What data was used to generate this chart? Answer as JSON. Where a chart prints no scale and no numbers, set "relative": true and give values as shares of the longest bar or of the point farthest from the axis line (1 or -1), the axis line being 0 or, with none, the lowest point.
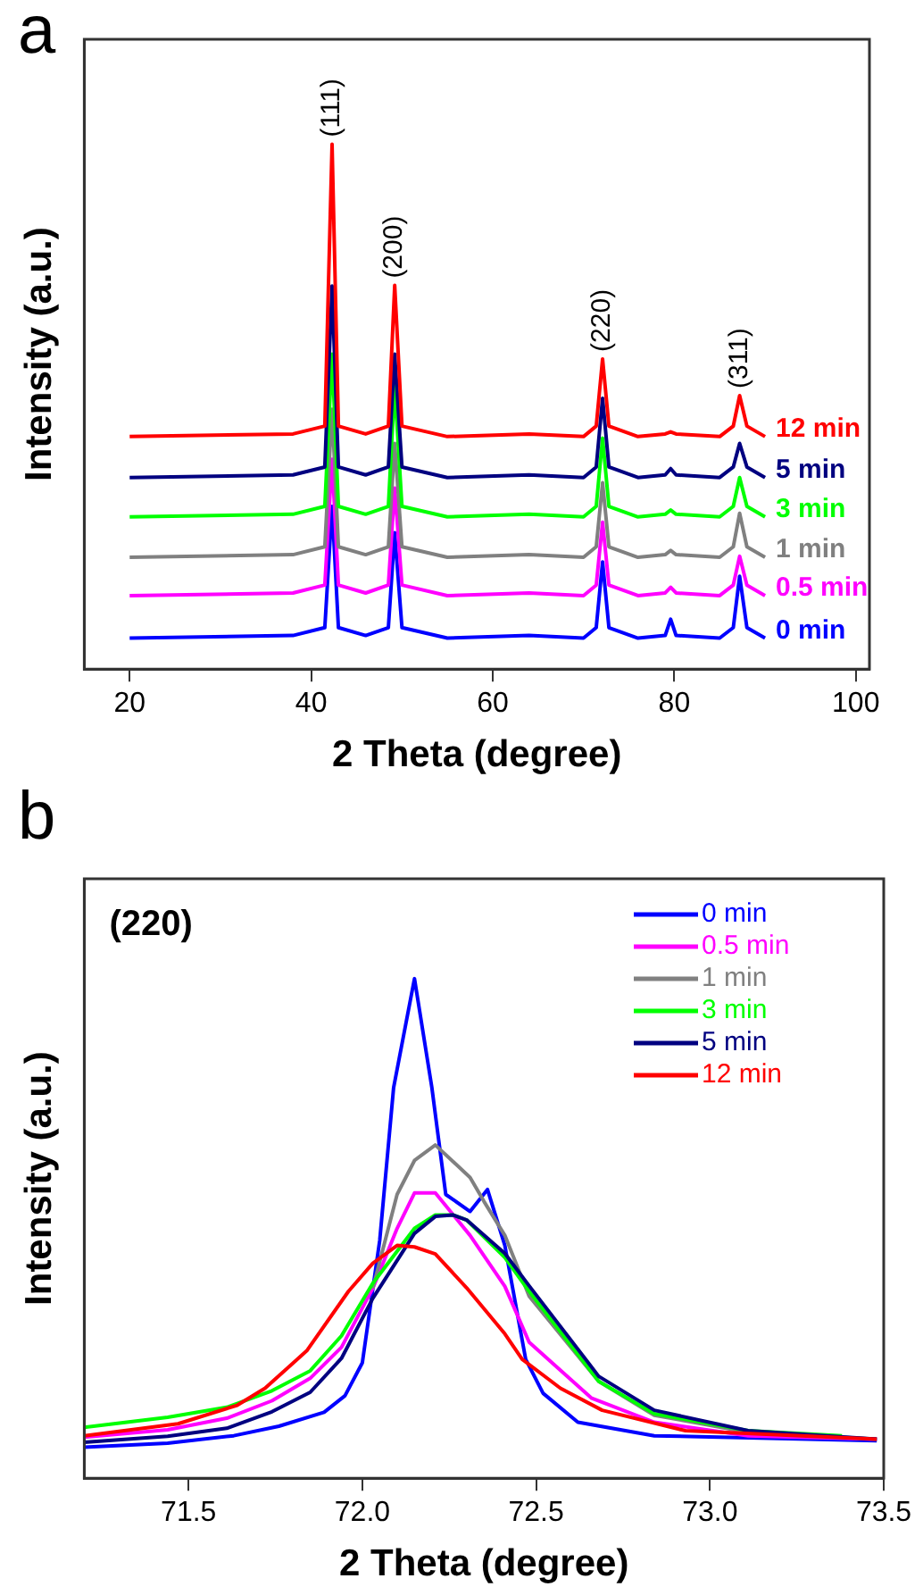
{
  "chart_data": [
    {
      "type": "line",
      "title": "a",
      "xlabel": "2 Theta (degree)",
      "ylabel": "Intensity (a.u.)",
      "relative": true,
      "legend": false,
      "marker": "none",
      "line_style": "solid",
      "grid": false,
      "xlim": [
        15,
        101.5
      ],
      "xticks": [
        20,
        40,
        60,
        80,
        100
      ],
      "annotations": [
        {
          "text": "(111)",
          "x": 42.3,
          "y": 1
        },
        {
          "text": "(200)",
          "x": 49.2,
          "y": 0.731
        },
        {
          "text": "(220)",
          "x": 72.1,
          "y": 0.591
        },
        {
          "text": "(311)",
          "x": 87.2,
          "y": 0.521
        }
      ],
      "x": [
        20,
        38,
        41.5,
        42.3,
        43,
        46,
        48.5,
        49.2,
        50,
        55,
        64,
        70,
        71.4,
        72.1,
        72.8,
        76,
        79,
        79.6,
        80.2,
        85,
        86.5,
        87.2,
        88,
        90
      ],
      "series": [
        {
          "name": "0 min",
          "color": "#0000ff",
          "values": [
            0.059,
            0.064,
            0.079,
            0.31,
            0.079,
            0.064,
            0.079,
            0.26,
            0.079,
            0.059,
            0.064,
            0.059,
            0.079,
            0.204,
            0.079,
            0.059,
            0.064,
            0.095,
            0.064,
            0.059,
            0.079,
            0.177,
            0.079,
            0.059
          ]
        },
        {
          "name": "0.5 min",
          "color": "#ff00ff",
          "values": [
            0.14,
            0.145,
            0.16,
            0.4,
            0.16,
            0.145,
            0.16,
            0.345,
            0.16,
            0.14,
            0.145,
            0.14,
            0.16,
            0.28,
            0.16,
            0.14,
            0.145,
            0.156,
            0.145,
            0.14,
            0.16,
            0.215,
            0.16,
            0.14
          ]
        },
        {
          "name": "1 min",
          "color": "#808080",
          "values": [
            0.213,
            0.218,
            0.233,
            0.495,
            0.233,
            0.218,
            0.233,
            0.43,
            0.233,
            0.213,
            0.218,
            0.213,
            0.233,
            0.355,
            0.233,
            0.213,
            0.218,
            0.226,
            0.218,
            0.213,
            0.233,
            0.297,
            0.233,
            0.213
          ]
        },
        {
          "name": "3 min",
          "color": "#00ff00",
          "values": [
            0.29,
            0.295,
            0.31,
            0.6,
            0.31,
            0.295,
            0.31,
            0.54,
            0.31,
            0.29,
            0.295,
            0.29,
            0.31,
            0.44,
            0.31,
            0.29,
            0.295,
            0.303,
            0.295,
            0.29,
            0.31,
            0.365,
            0.31,
            0.29
          ]
        },
        {
          "name": "5 min",
          "color": "#000080",
          "values": [
            0.365,
            0.37,
            0.385,
            0.73,
            0.385,
            0.37,
            0.385,
            0.6,
            0.385,
            0.365,
            0.37,
            0.365,
            0.385,
            0.516,
            0.385,
            0.365,
            0.37,
            0.382,
            0.37,
            0.365,
            0.385,
            0.43,
            0.385,
            0.365
          ]
        },
        {
          "name": "12 min",
          "color": "#ff0000",
          "values": [
            0.443,
            0.448,
            0.463,
            1,
            0.463,
            0.448,
            0.463,
            0.731,
            0.463,
            0.443,
            0.448,
            0.443,
            0.463,
            0.591,
            0.463,
            0.443,
            0.448,
            0.452,
            0.448,
            0.443,
            0.463,
            0.521,
            0.463,
            0.443
          ]
        }
      ]
    },
    {
      "type": "line",
      "title": "b",
      "xlabel": "2 Theta (degree)",
      "ylabel": "Intensity (a.u.)",
      "relative": true,
      "legend": "top right",
      "marker": "none",
      "line_style": "solid",
      "grid": false,
      "xlim": [
        71.2,
        73.5
      ],
      "xticks": [
        71.5,
        {
          "value": 72,
          "label": "72.0"
        },
        72.5,
        {
          "value": 73,
          "label": "73.0"
        },
        73.5
      ],
      "annotations": [
        "(220)"
      ],
      "series": [
        {
          "name": "0 min",
          "color": "#0000ff",
          "x": [
            71.2,
            71.44,
            71.63,
            71.76,
            71.89,
            71.95,
            72.0,
            72.05,
            72.09,
            72.15,
            72.2,
            72.24,
            72.31,
            72.36,
            72.41,
            72.47,
            72.52,
            72.62,
            72.84,
            73.48
          ],
          "values": [
            0.062,
            0.07,
            0.085,
            0.104,
            0.132,
            0.165,
            0.231,
            0.476,
            0.782,
            1,
            0.782,
            0.568,
            0.534,
            0.578,
            0.466,
            0.238,
            0.17,
            0.112,
            0.085,
            0.075
          ]
        },
        {
          "name": "0.5 min",
          "color": "#ff00ff",
          "x": [
            71.2,
            71.44,
            71.61,
            71.74,
            71.85,
            71.94,
            72.03,
            72.1,
            72.15,
            72.21,
            72.31,
            72.41,
            72.48,
            72.66,
            72.84,
            73.11,
            73.48
          ],
          "values": [
            0.082,
            0.097,
            0.12,
            0.155,
            0.2,
            0.262,
            0.38,
            0.5,
            0.571,
            0.571,
            0.486,
            0.384,
            0.272,
            0.16,
            0.112,
            0.085,
            0.078
          ]
        },
        {
          "name": "1 min",
          "color": "#808080",
          "x": [
            72.03,
            72.1,
            72.15,
            72.21,
            72.31,
            72.35,
            72.41,
            72.48,
            72.68,
            72.84,
            73.11,
            73.48
          ],
          "values": [
            0.38,
            0.568,
            0.636,
            0.667,
            0.602,
            0.554,
            0.486,
            0.364,
            0.194,
            0.126,
            0.092,
            0.078
          ]
        },
        {
          "name": "3 min",
          "color": "#00ff00",
          "x": [
            71.2,
            71.44,
            71.61,
            71.74,
            71.85,
            71.94,
            72.03,
            72.15,
            72.21,
            72.26,
            72.3,
            72.41,
            72.48,
            72.68,
            72.84,
            73.11,
            73.38
          ],
          "values": [
            0.102,
            0.122,
            0.142,
            0.175,
            0.215,
            0.285,
            0.39,
            0.5,
            0.527,
            0.527,
            0.517,
            0.442,
            0.374,
            0.194,
            0.129,
            0.095,
            0.085
          ]
        },
        {
          "name": "5 min",
          "color": "#000080",
          "x": [
            71.2,
            71.44,
            71.61,
            71.74,
            71.85,
            71.94,
            72.03,
            72.15,
            72.21,
            72.26,
            72.3,
            72.41,
            72.48,
            72.68,
            72.84,
            73.11,
            73.48
          ],
          "values": [
            0.072,
            0.084,
            0.1,
            0.133,
            0.172,
            0.24,
            0.36,
            0.49,
            0.524,
            0.527,
            0.517,
            0.45,
            0.385,
            0.204,
            0.136,
            0.095,
            0.078
          ]
        },
        {
          "name": "12 min",
          "color": "#ff0000",
          "x": [
            71.2,
            71.47,
            71.64,
            71.72,
            71.84,
            71.96,
            72.03,
            72.1,
            72.15,
            72.21,
            72.3,
            72.41,
            72.46,
            72.57,
            72.69,
            72.93,
            73.48
          ],
          "values": [
            0.085,
            0.109,
            0.146,
            0.18,
            0.255,
            0.374,
            0.43,
            0.466,
            0.463,
            0.449,
            0.381,
            0.289,
            0.238,
            0.18,
            0.136,
            0.095,
            0.078
          ]
        }
      ]
    }
  ]
}
